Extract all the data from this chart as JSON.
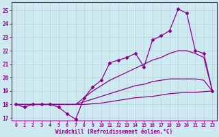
{
  "background_color": "#cfe9f0",
  "grid_color": "#b0d4de",
  "line_color": "#880088",
  "xlabel": "Windchill (Refroidissement éolien,°C)",
  "xlim": [
    -0.5,
    23.5
  ],
  "ylim": [
    16.8,
    25.6
  ],
  "yticks": [
    17,
    18,
    19,
    20,
    21,
    22,
    23,
    24,
    25
  ],
  "xticks": [
    0,
    1,
    2,
    3,
    4,
    5,
    6,
    7,
    8,
    9,
    10,
    11,
    12,
    13,
    14,
    15,
    16,
    17,
    18,
    19,
    20,
    21,
    22,
    23
  ],
  "series": [
    {
      "x": [
        0,
        1,
        2,
        3,
        4,
        5,
        6,
        7,
        8,
        9,
        10,
        11,
        12,
        13,
        14,
        15,
        16,
        17,
        18,
        19,
        20,
        21,
        22,
        23
      ],
      "y": [
        18.0,
        17.8,
        18.0,
        18.0,
        18.0,
        17.8,
        17.3,
        16.9,
        18.5,
        19.3,
        19.8,
        21.1,
        21.3,
        21.5,
        21.8,
        20.8,
        22.8,
        23.1,
        23.5,
        25.1,
        24.8,
        22.0,
        21.8,
        19.0
      ],
      "marker": "D",
      "markersize": 2.5,
      "linewidth": 0.9
    },
    {
      "x": [
        0,
        1,
        2,
        3,
        4,
        5,
        6,
        7,
        8,
        9,
        10,
        11,
        12,
        13,
        14,
        15,
        16,
        17,
        18,
        19,
        20,
        21,
        22,
        23
      ],
      "y": [
        18.0,
        18.0,
        18.0,
        18.0,
        18.0,
        18.0,
        18.0,
        18.0,
        18.5,
        19.0,
        19.4,
        19.8,
        20.1,
        20.4,
        20.7,
        21.0,
        21.3,
        21.5,
        21.8,
        22.0,
        22.0,
        21.8,
        21.5,
        19.0
      ],
      "marker": null,
      "linewidth": 0.9
    },
    {
      "x": [
        0,
        1,
        2,
        3,
        4,
        5,
        6,
        7,
        8,
        9,
        10,
        11,
        12,
        13,
        14,
        15,
        16,
        17,
        18,
        19,
        20,
        21,
        22,
        23
      ],
      "y": [
        18.0,
        18.0,
        18.0,
        18.0,
        18.0,
        18.0,
        18.0,
        18.0,
        18.2,
        18.4,
        18.6,
        18.8,
        19.0,
        19.2,
        19.4,
        19.5,
        19.7,
        19.8,
        19.9,
        19.9,
        19.9,
        19.9,
        19.8,
        19.0
      ],
      "marker": null,
      "linewidth": 0.9
    },
    {
      "x": [
        0,
        1,
        2,
        3,
        4,
        5,
        6,
        7,
        8,
        9,
        10,
        11,
        12,
        13,
        14,
        15,
        16,
        17,
        18,
        19,
        20,
        21,
        22,
        23
      ],
      "y": [
        18.0,
        18.0,
        18.0,
        18.0,
        18.0,
        18.0,
        18.0,
        18.0,
        18.0,
        18.05,
        18.1,
        18.2,
        18.3,
        18.4,
        18.5,
        18.55,
        18.6,
        18.7,
        18.8,
        18.85,
        18.9,
        18.9,
        18.95,
        19.0
      ],
      "marker": null,
      "linewidth": 0.9
    }
  ]
}
